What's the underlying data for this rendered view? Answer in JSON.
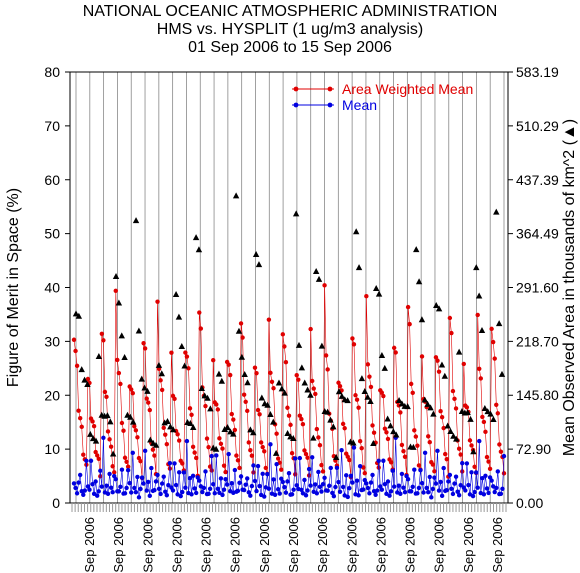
{
  "chart_data": {
    "type": "scatter",
    "title_lines": [
      "NATIONAL OCEANIC ATMOSPHERIC ADMINISTRATION",
      "HMS vs. HYSPLIT (1 ug/m3 analysis)",
      "01 Sep 2006 to 15 Sep 2006"
    ],
    "ylabel_left": "Figure of Merit in Space (%)",
    "ylabel_right": "Mean Observed Area in thousands of km^2 (▲)",
    "ylim_left": [
      0,
      80
    ],
    "ylim_right": [
      0,
      583.19
    ],
    "yticks_left": [
      "0",
      "10",
      "20",
      "30",
      "40",
      "50",
      "60",
      "70",
      "80"
    ],
    "yticks_right": [
      "0.00",
      "72.90",
      "145.80",
      "218.70",
      "291.60",
      "364.49",
      "437.39",
      "510.29",
      "583.19"
    ],
    "x_tick_label": "Sep 2006",
    "x_tick_count": 15,
    "legend": [
      {
        "name": "Area Weighted Mean",
        "color": "#e00000",
        "marker": "circle"
      },
      {
        "name": "Mean",
        "color": "#0000e0",
        "marker": "circle"
      }
    ],
    "triangle_color": "#000000",
    "series_groups": 31,
    "group_period": 9,
    "series_awm_pattern": [
      40.4,
      33.2,
      26.8,
      22.1,
      18.0,
      14.5,
      11.2,
      9.0,
      7.1,
      27.9,
      24.1,
      20.9,
      17.8,
      15.0,
      12.2,
      10.1,
      8.4,
      6.2,
      34.9,
      30.2,
      25.0,
      21.3,
      17.7,
      13.9,
      11.0,
      8.8,
      6.5
    ],
    "series_mean_pattern": [
      5.2,
      3.1,
      2.4,
      4.0,
      6.5,
      2.2,
      1.8,
      3.3,
      8.7,
      4.1,
      2.6,
      9.8,
      3.5,
      2.0,
      5.7,
      1.5,
      2.9,
      6.3,
      3.8,
      12.1,
      2.3,
      4.6,
      1.9,
      7.2,
      3.0,
      2.5,
      5.0
    ],
    "triangles_area_pattern": [
      393.6,
      342.6,
      218.7,
      182.2,
      160.4,
      131.2,
      109.4,
      94.8,
      204.1,
      174.9,
      153.1,
      138.5,
      116.6,
      102.1,
      415.5,
      328.0,
      247.9,
      196.8,
      167.6,
      145.8,
      123.9
    ]
  }
}
